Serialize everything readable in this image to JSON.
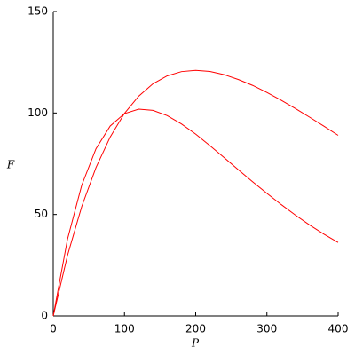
{
  "chart_data": {
    "type": "line",
    "x_label": "P",
    "y_label": "F",
    "x": [
      0,
      20,
      40,
      60,
      80,
      100,
      120,
      140,
      160,
      180,
      200,
      220,
      240,
      260,
      280,
      300,
      320,
      340,
      360,
      380,
      400
    ],
    "series": [
      {
        "color": "#ff0000",
        "values": [
          0,
          37.8,
          64.4,
          82.4,
          93.6,
          99.7,
          101.9,
          101.3,
          98.7,
          94.6,
          89.6,
          83.9,
          78.0,
          72.0,
          66.1,
          60.4,
          54.9,
          49.7,
          44.8,
          40.3,
          36.2
        ]
      },
      {
        "color": "#ff0000",
        "values": [
          0,
          29.8,
          53.9,
          73.1,
          88.2,
          99.8,
          108.3,
          114.4,
          118.3,
          120.4,
          121.0,
          120.5,
          118.9,
          116.5,
          113.6,
          110.1,
          106.3,
          102.2,
          97.9,
          93.5,
          89.0
        ]
      }
    ],
    "xlim": [
      0,
      400
    ],
    "xticks": [
      0,
      100,
      200,
      300,
      400
    ],
    "ylim": [
      0,
      150
    ],
    "yticks": [
      0,
      50,
      100,
      150
    ]
  }
}
